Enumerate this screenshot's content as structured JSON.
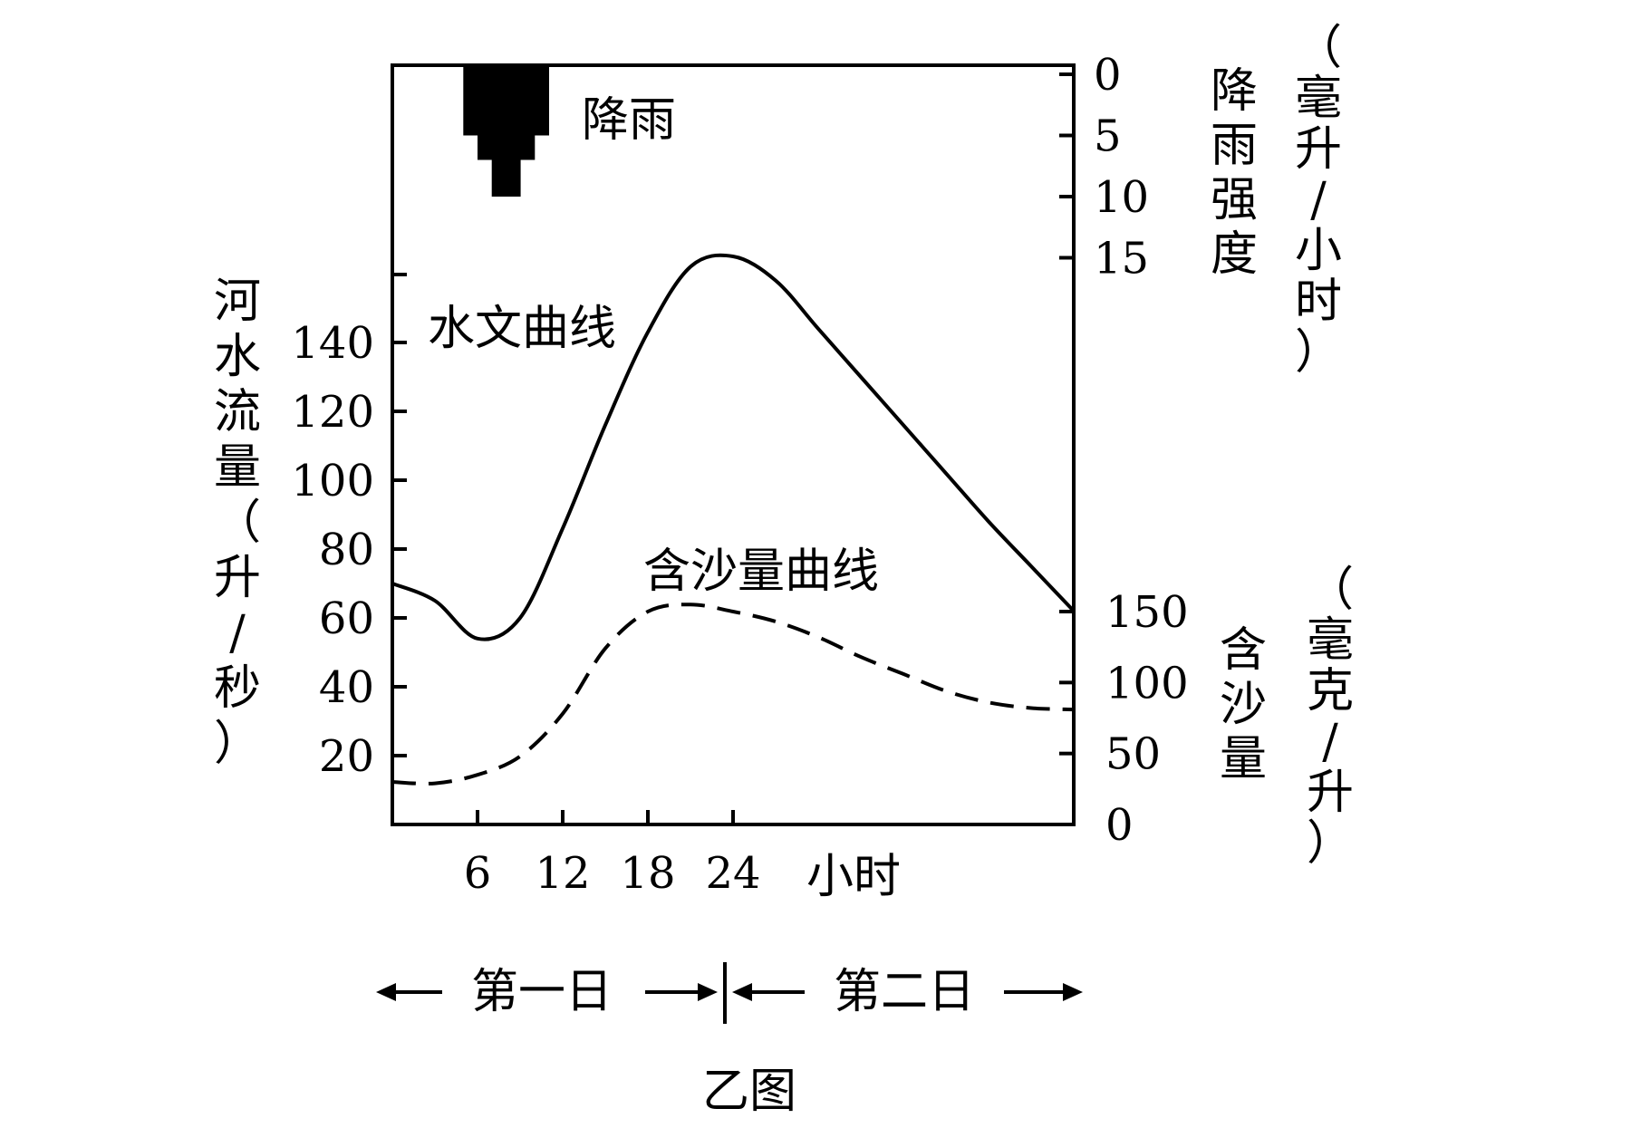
{
  "chart_data": {
    "type": "line",
    "caption": "乙图",
    "x_axis": {
      "unit_label": "小时",
      "ticks": [
        6,
        12,
        18,
        24
      ],
      "day_labels": [
        "第一日",
        "第二日"
      ]
    },
    "left_axis": {
      "label": "河水流量（升/秒）",
      "label_chars": [
        "河",
        "水",
        "流",
        "量",
        "（",
        "升",
        "/",
        "秒",
        "）"
      ],
      "ticks": [
        20,
        40,
        60,
        80,
        100,
        120,
        140
      ]
    },
    "right_top_axis": {
      "label": "降雨强度（毫升/小时）",
      "name_chars": [
        "降",
        "雨",
        "强",
        "度"
      ],
      "unit_chars": [
        "（",
        "毫",
        "升",
        "/",
        "小",
        "时",
        "）"
      ],
      "ticks": [
        0,
        5,
        10,
        15
      ]
    },
    "right_bottom_axis": {
      "label": "含沙量（毫克/升）",
      "name_chars": [
        "含",
        "沙",
        "量"
      ],
      "unit_chars": [
        "（",
        "毫",
        "克",
        "/",
        "升",
        "）"
      ],
      "ticks": [
        0,
        50,
        100,
        150
      ]
    },
    "series": [
      {
        "name": "水文曲线",
        "style": "solid",
        "axis": "left",
        "x": [
          0,
          3,
          6,
          9,
          12,
          15,
          18,
          21,
          24,
          27,
          30,
          33,
          36,
          39,
          42,
          45,
          48
        ],
        "y": [
          70,
          65,
          54,
          60,
          86,
          116,
          143,
          162,
          165,
          158,
          144,
          130,
          116,
          102,
          88,
          75,
          62
        ]
      },
      {
        "name": "含沙量曲线",
        "style": "dashed",
        "axis": "right_bottom",
        "x": [
          0,
          3,
          6,
          9,
          12,
          15,
          18,
          21,
          24,
          27,
          30,
          33,
          36,
          39,
          42,
          45,
          48
        ],
        "y": [
          30,
          29,
          35,
          48,
          78,
          124,
          150,
          155,
          150,
          143,
          132,
          118,
          106,
          94,
          86,
          82,
          81
        ]
      },
      {
        "name": "降雨",
        "style": "bar",
        "axis": "right_top",
        "bars": [
          {
            "x_start": 5,
            "x_end": 6,
            "value": 5
          },
          {
            "x_start": 6,
            "x_end": 7,
            "value": 7
          },
          {
            "x_start": 7,
            "x_end": 9,
            "value": 10
          },
          {
            "x_start": 9,
            "x_end": 10,
            "value": 7
          },
          {
            "x_start": 10,
            "x_end": 11,
            "value": 5
          }
        ]
      }
    ]
  }
}
